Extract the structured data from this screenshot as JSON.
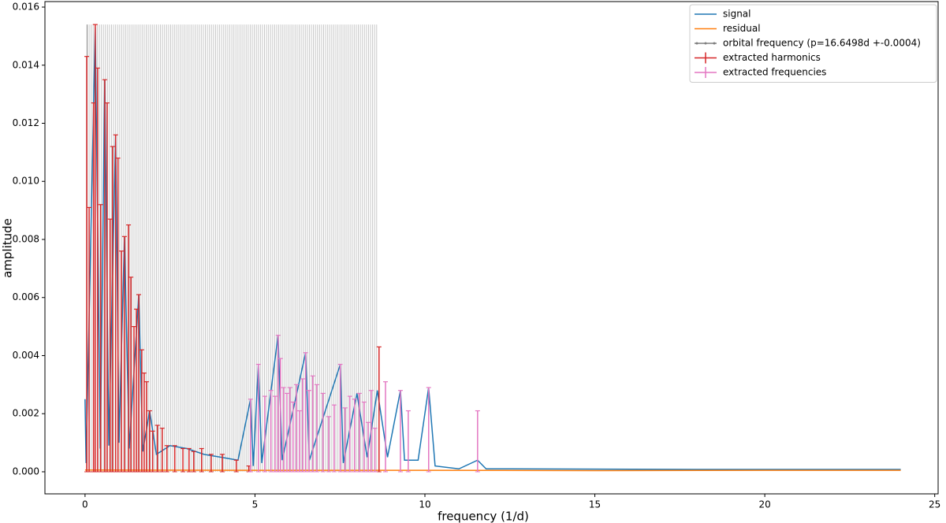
{
  "chart_data": {
    "type": "line",
    "xlabel": "frequency (1/d)",
    "ylabel": "amplitude",
    "xlim": [
      -1.18,
      25.1
    ],
    "ylim": [
      -0.00076,
      0.01619
    ],
    "xticks": [
      0,
      5,
      10,
      15,
      20,
      25
    ],
    "yticks": [
      {
        "value": 0,
        "label": "0.000"
      },
      {
        "value": 0.002,
        "label": "0.002"
      },
      {
        "value": 0.004,
        "label": "0.004"
      },
      {
        "value": 0.006,
        "label": "0.006"
      },
      {
        "value": 0.008,
        "label": "0.008"
      },
      {
        "value": 0.01,
        "label": "0.010"
      },
      {
        "value": 0.012,
        "label": "0.012"
      },
      {
        "value": 0.014,
        "label": "0.014"
      },
      {
        "value": 0.016,
        "label": "0.016"
      }
    ],
    "legend": "upper right",
    "series": [
      {
        "name": "signal",
        "color": "#1f77b4",
        "style": "line",
        "x": [
          0,
          0.03,
          0.3,
          0.45,
          0.58,
          0.7,
          0.9,
          1.0,
          1.16,
          1.3,
          1.58,
          1.7,
          1.9,
          2.1,
          2.5,
          3.0,
          3.5,
          4.0,
          4.5,
          4.87,
          4.95,
          5.1,
          5.2,
          5.68,
          5.8,
          6.49,
          6.6,
          7.51,
          7.6,
          8.0,
          8.3,
          8.6,
          8.9,
          9.28,
          9.4,
          9.8,
          10.11,
          10.3,
          11.0,
          11.55,
          11.8,
          12.5,
          18,
          24
        ],
        "values": [
          0.0025,
          0.0003,
          0.0153,
          0.0008,
          0.0135,
          0.0009,
          0.0116,
          0.001,
          0.0081,
          0.0008,
          0.0061,
          0.0007,
          0.0021,
          0.0006,
          0.0009,
          0.0008,
          0.0006,
          0.0005,
          0.0004,
          0.0025,
          0.0002,
          0.0037,
          0.0003,
          0.0047,
          0.0004,
          0.0041,
          0.0004,
          0.0037,
          0.0003,
          0.0027,
          0.0005,
          0.0028,
          0.0005,
          0.0028,
          0.0004,
          0.0004,
          0.0029,
          0.0002,
          0.0001,
          0.0004,
          0.0001,
          0.0001,
          8e-05,
          8e-05
        ]
      },
      {
        "name": "residual",
        "color": "#ff7f0e",
        "style": "line",
        "x": [
          0,
          5,
          10,
          15,
          20,
          24
        ],
        "values": [
          6e-05,
          5e-05,
          5e-05,
          4e-05,
          5e-05,
          5e-05
        ]
      },
      {
        "name": "orbital frequency (p=16.6498d +-0.0004)",
        "color": "#808080",
        "style": "vlines",
        "top": 0.0154,
        "x": [
          0.06,
          0.12,
          0.18,
          0.24,
          0.3,
          0.36,
          0.42,
          0.48,
          0.54,
          0.6,
          0.66,
          0.72,
          0.78,
          0.84,
          0.9,
          0.96,
          1.02,
          1.08,
          1.14,
          1.2,
          1.26,
          1.32,
          1.38,
          1.44,
          1.5,
          1.56,
          1.62,
          1.68,
          1.74,
          1.8,
          1.86,
          1.92,
          1.98,
          2.04,
          2.1,
          2.16,
          2.22,
          2.28,
          2.34,
          2.4,
          2.46,
          2.52,
          2.58,
          2.64,
          2.7,
          2.76,
          2.82,
          2.88,
          2.94,
          3,
          3.06,
          3.12,
          3.18,
          3.24,
          3.3,
          3.36,
          3.42,
          3.48,
          3.54,
          3.6,
          3.66,
          3.72,
          3.78,
          3.84,
          3.9,
          3.96,
          4.02,
          4.08,
          4.14,
          4.2,
          4.26,
          4.32,
          4.38,
          4.44,
          4.5,
          4.56,
          4.62,
          4.68,
          4.74,
          4.8,
          4.86,
          4.92,
          4.98,
          5.04,
          5.1,
          5.16,
          5.22,
          5.28,
          5.34,
          5.4,
          5.46,
          5.52,
          5.58,
          5.64,
          5.7,
          5.76,
          5.82,
          5.88,
          5.94,
          6,
          6.06,
          6.12,
          6.18,
          6.24,
          6.3,
          6.36,
          6.42,
          6.48,
          6.54,
          6.6,
          6.66,
          6.72,
          6.78,
          6.84,
          6.9,
          6.96,
          7.02,
          7.08,
          7.14,
          7.2,
          7.26,
          7.32,
          7.38,
          7.44,
          7.5,
          7.56,
          7.62,
          7.68,
          7.74,
          7.8,
          7.86,
          7.92,
          7.98,
          8.04,
          8.1,
          8.16,
          8.22,
          8.28,
          8.34,
          8.4,
          8.46,
          8.52,
          8.58
        ]
      },
      {
        "name": "extracted harmonics",
        "color": "#d62728",
        "style": "stems",
        "x": [
          0.05,
          0.12,
          0.25,
          0.3,
          0.37,
          0.46,
          0.58,
          0.65,
          0.74,
          0.81,
          0.9,
          0.97,
          1.07,
          1.16,
          1.28,
          1.35,
          1.44,
          1.51,
          1.58,
          1.67,
          1.74,
          1.81,
          1.9,
          1.99,
          2.13,
          2.27,
          2.41,
          2.64,
          2.88,
          3.06,
          3.2,
          3.43,
          3.71,
          4.04,
          4.45,
          4.82,
          8.65
        ],
        "values": [
          0.0143,
          0.0091,
          0.0127,
          0.0154,
          0.0139,
          0.0092,
          0.0135,
          0.0127,
          0.0087,
          0.0112,
          0.0116,
          0.0108,
          0.0076,
          0.0081,
          0.0085,
          0.0067,
          0.005,
          0.0056,
          0.0061,
          0.0042,
          0.0034,
          0.0031,
          0.0021,
          0.0014,
          0.0016,
          0.0015,
          0.0009,
          0.0009,
          0.0008,
          0.0008,
          0.0007,
          0.0008,
          0.0006,
          0.0006,
          0.0004,
          0.0002,
          0.0043
        ]
      },
      {
        "name": "extracted frequencies",
        "color": "#e377c2",
        "style": "stems",
        "x": [
          4.87,
          5.1,
          5.29,
          5.47,
          5.59,
          5.68,
          5.75,
          5.84,
          5.94,
          6.03,
          6.12,
          6.22,
          6.31,
          6.4,
          6.49,
          6.59,
          6.7,
          6.82,
          7.0,
          7.17,
          7.33,
          7.51,
          7.65,
          7.79,
          7.93,
          8.07,
          8.21,
          8.33,
          8.42,
          8.53,
          8.84,
          9.28,
          9.51,
          10.11,
          11.55
        ],
        "values": [
          0.0025,
          0.0037,
          0.0026,
          0.0028,
          0.0026,
          0.0047,
          0.0039,
          0.0029,
          0.0027,
          0.0029,
          0.0024,
          0.003,
          0.0021,
          0.0032,
          0.0041,
          0.0028,
          0.0033,
          0.003,
          0.0027,
          0.0019,
          0.0023,
          0.0037,
          0.0022,
          0.0026,
          0.0025,
          0.0027,
          0.0024,
          0.0017,
          0.0028,
          0.0015,
          0.0031,
          0.0028,
          0.0021,
          0.0029,
          0.0021
        ]
      }
    ]
  }
}
